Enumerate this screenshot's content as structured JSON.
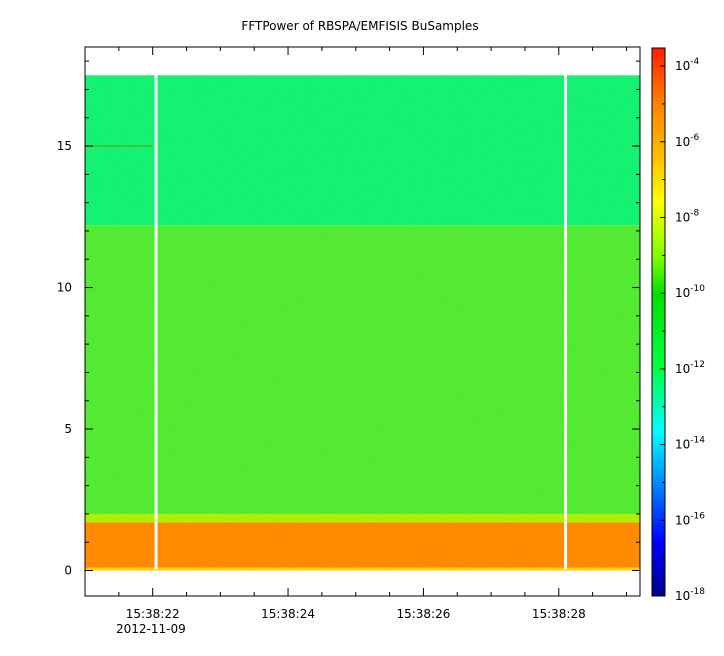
{
  "chart_data": {
    "type": "heatmap",
    "title": "FFTPower of RBSPA/EMFISIS  BuSamples",
    "xlabel": "",
    "ylabel": "",
    "x_date_label": "2012-11-09",
    "x_ticks": [
      {
        "t": 22,
        "label": "15:38:22"
      },
      {
        "t": 24,
        "label": "15:38:24"
      },
      {
        "t": 26,
        "label": "15:38:26"
      },
      {
        "t": 28,
        "label": "15:38:28"
      }
    ],
    "x_minor_ticks": [
      21.5,
      22.5,
      23,
      23.5,
      24.5,
      25,
      25.5,
      26.5,
      27,
      27.5,
      28.5,
      29
    ],
    "xlim": [
      21.0,
      29.2
    ],
    "x_unit": "seconds after 15:38:00 on 2012-11-09",
    "y_ticks": [
      0,
      5,
      10,
      15
    ],
    "ylim": [
      -0.9,
      18.5
    ],
    "data_y_range": [
      0.05,
      17.5
    ],
    "gaps_seconds": [
      22.05,
      28.1
    ],
    "gap_width_seconds": 0.04,
    "colorbar": {
      "scale": "log",
      "range": [
        1e-18,
        0.0003
      ],
      "tick_exponents": [
        -18,
        -16,
        -14,
        -12,
        -10,
        -8,
        -6,
        -4
      ],
      "tick_base": "10",
      "colormap": [
        "#00008c",
        "#0000ff",
        "#0080ff",
        "#00ffff",
        "#00ff40",
        "#00e000",
        "#80ff00",
        "#ffff00",
        "#ffc000",
        "#ff8000",
        "#ff2000"
      ]
    },
    "bands": [
      {
        "y_from": 0.0,
        "y_to": 0.1,
        "log10_power": -7.5,
        "color": "#ffd000"
      },
      {
        "y_from": 0.1,
        "y_to": 1.7,
        "log10_power": -7.0,
        "color": "#ff8400"
      },
      {
        "y_from": 1.7,
        "y_to": 2.0,
        "log10_power": -9.0,
        "color": "#a8f000"
      },
      {
        "y_from": 2.0,
        "y_to": 12.2,
        "log10_power": -10.0,
        "color": "#49e836"
      },
      {
        "y_from": 12.2,
        "y_to": 17.5,
        "log10_power": -12.0,
        "color": "#07f078"
      }
    ],
    "features": [
      {
        "type": "line",
        "y": 15.0,
        "t_from": 21.0,
        "t_to": 22.0,
        "log10_power": -9.5,
        "color": "#3cc83c"
      }
    ]
  }
}
